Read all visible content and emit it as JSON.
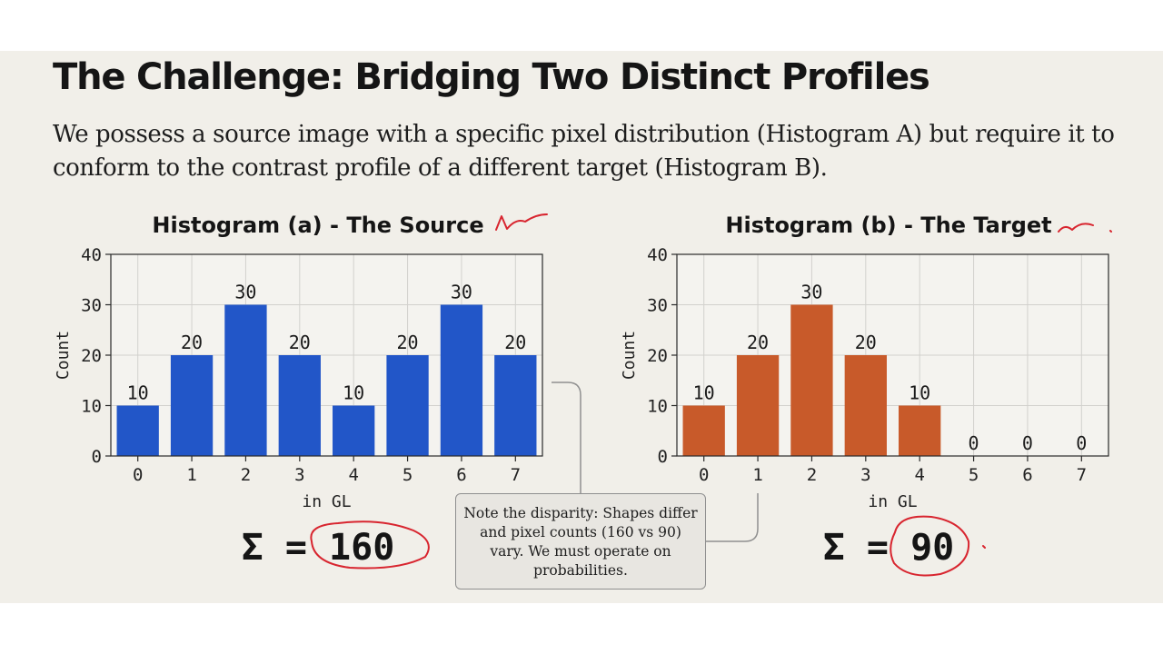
{
  "slide": {
    "title": "The Challenge: Bridging Two Distinct Profiles",
    "subtitle": "We possess a source image with a specific pixel distribution (Histogram A) but require it to conform to the contrast profile of a different target (Histogram B).",
    "note": "Note the disparity: Shapes differ and pixel counts (160 vs 90) vary. We must operate on probabilities."
  },
  "chart_data": [
    {
      "type": "bar",
      "title": "Histogram (a) - The Source",
      "xlabel": "in GL",
      "ylabel": "Count",
      "categories": [
        "0",
        "1",
        "2",
        "3",
        "4",
        "5",
        "6",
        "7"
      ],
      "values": [
        10,
        20,
        30,
        20,
        10,
        20,
        30,
        20
      ],
      "ylim": [
        0,
        40
      ],
      "yticks": [
        "0",
        "10",
        "20",
        "30",
        "40"
      ],
      "grid": true,
      "color": "#2256c8",
      "sum_label": "Σ = 160"
    },
    {
      "type": "bar",
      "title": "Histogram (b) - The Target",
      "xlabel": "in GL",
      "ylabel": "Count",
      "categories": [
        "0",
        "1",
        "2",
        "3",
        "4",
        "5",
        "6",
        "7"
      ],
      "values": [
        10,
        20,
        30,
        20,
        10,
        0,
        0,
        0
      ],
      "ylim": [
        0,
        40
      ],
      "yticks": [
        "0",
        "10",
        "20",
        "30",
        "40"
      ],
      "grid": true,
      "color": "#c85a2a",
      "sum_label": "Σ = 90"
    }
  ],
  "colors": {
    "annotation": "#d8252f",
    "connector": "#8f8f8f"
  }
}
